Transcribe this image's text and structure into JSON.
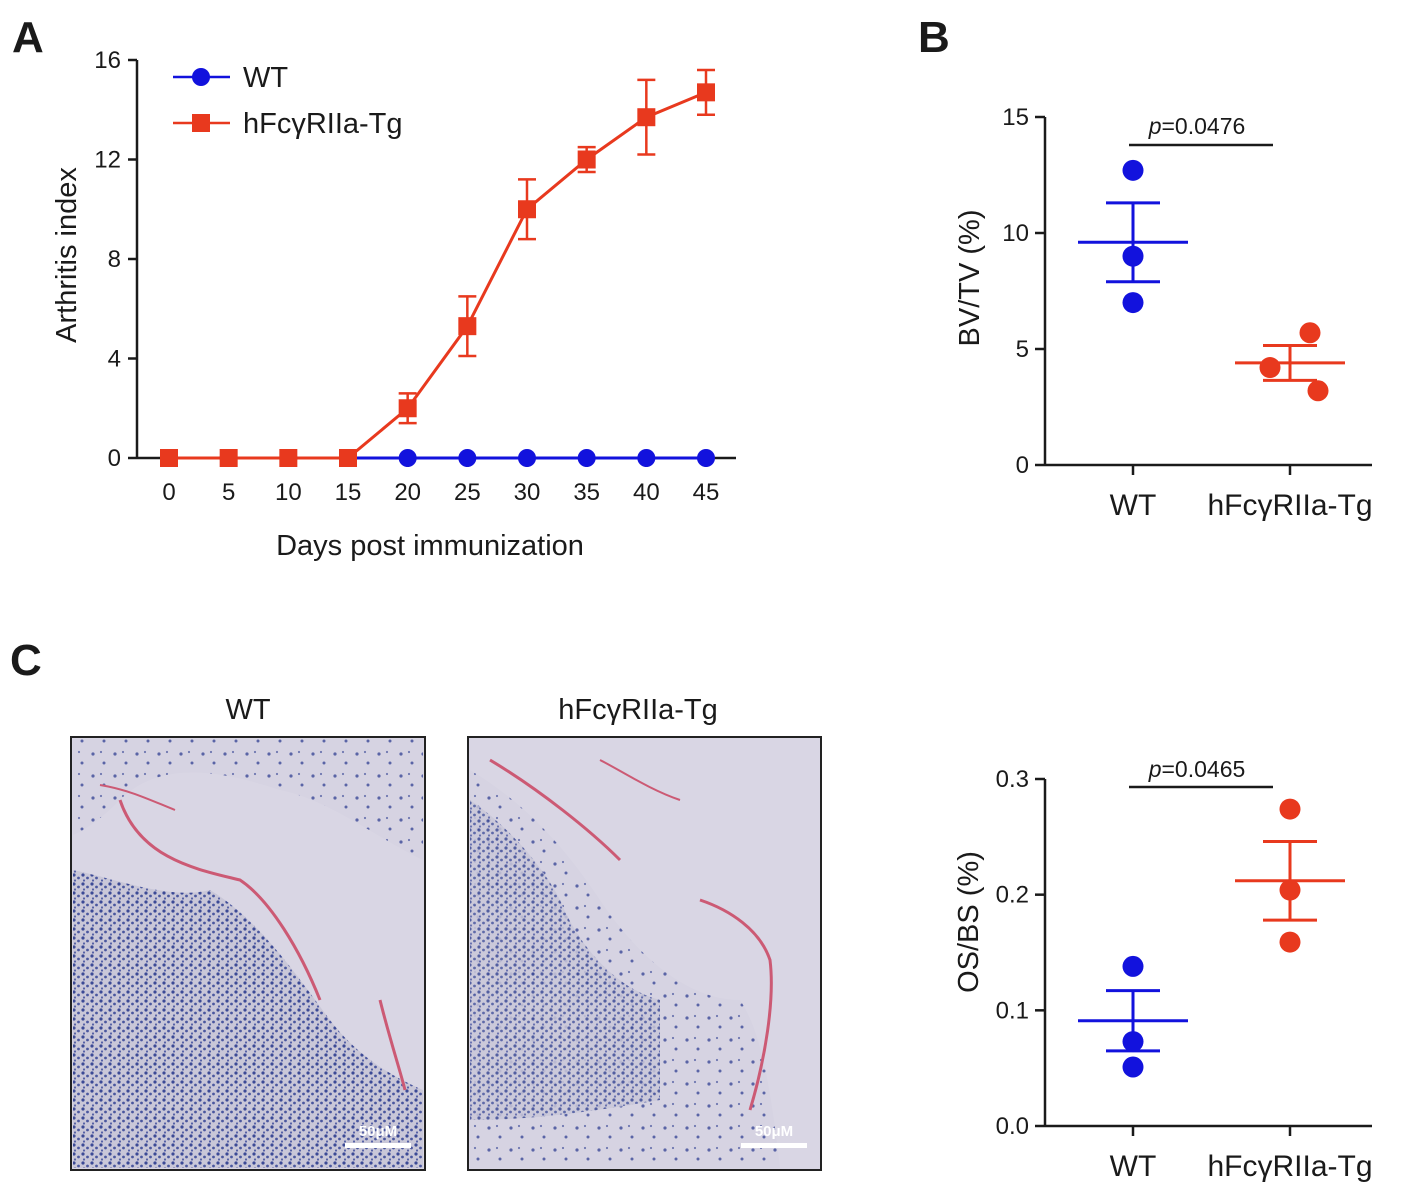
{
  "figure": {
    "panel_labels": [
      "A",
      "B",
      "C"
    ],
    "colors": {
      "wt": "#1212dd",
      "tg": "#e8391e",
      "axis": "#1a1a1a"
    }
  },
  "chart_data": [
    {
      "id": "A",
      "type": "line",
      "title": "",
      "xlabel": "Days post immunization",
      "ylabel": "Arthritis index",
      "x": [
        0,
        5,
        10,
        15,
        20,
        25,
        30,
        35,
        40,
        45
      ],
      "xticks": [
        "0",
        "5",
        "10",
        "15",
        "20",
        "25",
        "30",
        "35",
        "40",
        "45"
      ],
      "yticks": [
        "0",
        "4",
        "8",
        "12",
        "16"
      ],
      "ylim": [
        0,
        16
      ],
      "legend": [
        "WT",
        "hFcγRIIa-Tg"
      ],
      "legend_position": "top-left",
      "series": [
        {
          "name": "WT",
          "marker": "circle",
          "color": "#1212dd",
          "values": [
            0,
            0,
            0,
            0,
            0,
            0,
            0,
            0,
            0,
            0
          ],
          "errors": [
            0,
            0,
            0,
            0,
            0,
            0,
            0,
            0,
            0,
            0
          ]
        },
        {
          "name": "hFcγRIIa-Tg",
          "marker": "square",
          "color": "#e8391e",
          "values": [
            0,
            0,
            0,
            0,
            2.0,
            5.3,
            10.0,
            12.0,
            13.7,
            14.7
          ],
          "errors": [
            0,
            0,
            0,
            0,
            0.6,
            1.2,
            1.2,
            0.5,
            1.5,
            0.9
          ]
        }
      ]
    },
    {
      "id": "B",
      "type": "scatter",
      "ylabel": "BV/TV (%)",
      "categories": [
        "WT",
        "hFcγRIIa-Tg"
      ],
      "yticks": [
        "0",
        "5",
        "10",
        "15"
      ],
      "ylim": [
        0,
        15
      ],
      "pvalue_italic": "p",
      "pvalue_text": "=0.0476",
      "groups": [
        {
          "name": "WT",
          "color": "#1212dd",
          "points": [
            12.7,
            9.0,
            7.0
          ],
          "mean": 9.6,
          "sem": 1.7
        },
        {
          "name": "hFcγRIIa-Tg",
          "color": "#e8391e",
          "points": [
            5.7,
            4.2,
            3.2
          ],
          "mean": 4.4,
          "sem": 0.75
        }
      ]
    },
    {
      "id": "C",
      "type": "scatter",
      "ylabel": "OS/BS (%)",
      "categories": [
        "WT",
        "hFcγRIIa-Tg"
      ],
      "yticks": [
        "0.0",
        "0.1",
        "0.2",
        "0.3"
      ],
      "ylim": [
        0,
        0.3
      ],
      "pvalue_italic": "p",
      "pvalue_text": "=0.0465",
      "groups": [
        {
          "name": "WT",
          "color": "#1212dd",
          "points": [
            0.138,
            0.073,
            0.051
          ],
          "mean": 0.091,
          "sem": 0.026
        },
        {
          "name": "hFcγRIIa-Tg",
          "color": "#e8391e",
          "points": [
            0.274,
            0.204,
            0.159
          ],
          "mean": 0.212,
          "sem": 0.034
        }
      ]
    }
  ],
  "micrographs": [
    {
      "title": "WT",
      "scale_bar": "50μM"
    },
    {
      "title": "hFcγRIIa-Tg",
      "scale_bar": "50μM"
    }
  ]
}
